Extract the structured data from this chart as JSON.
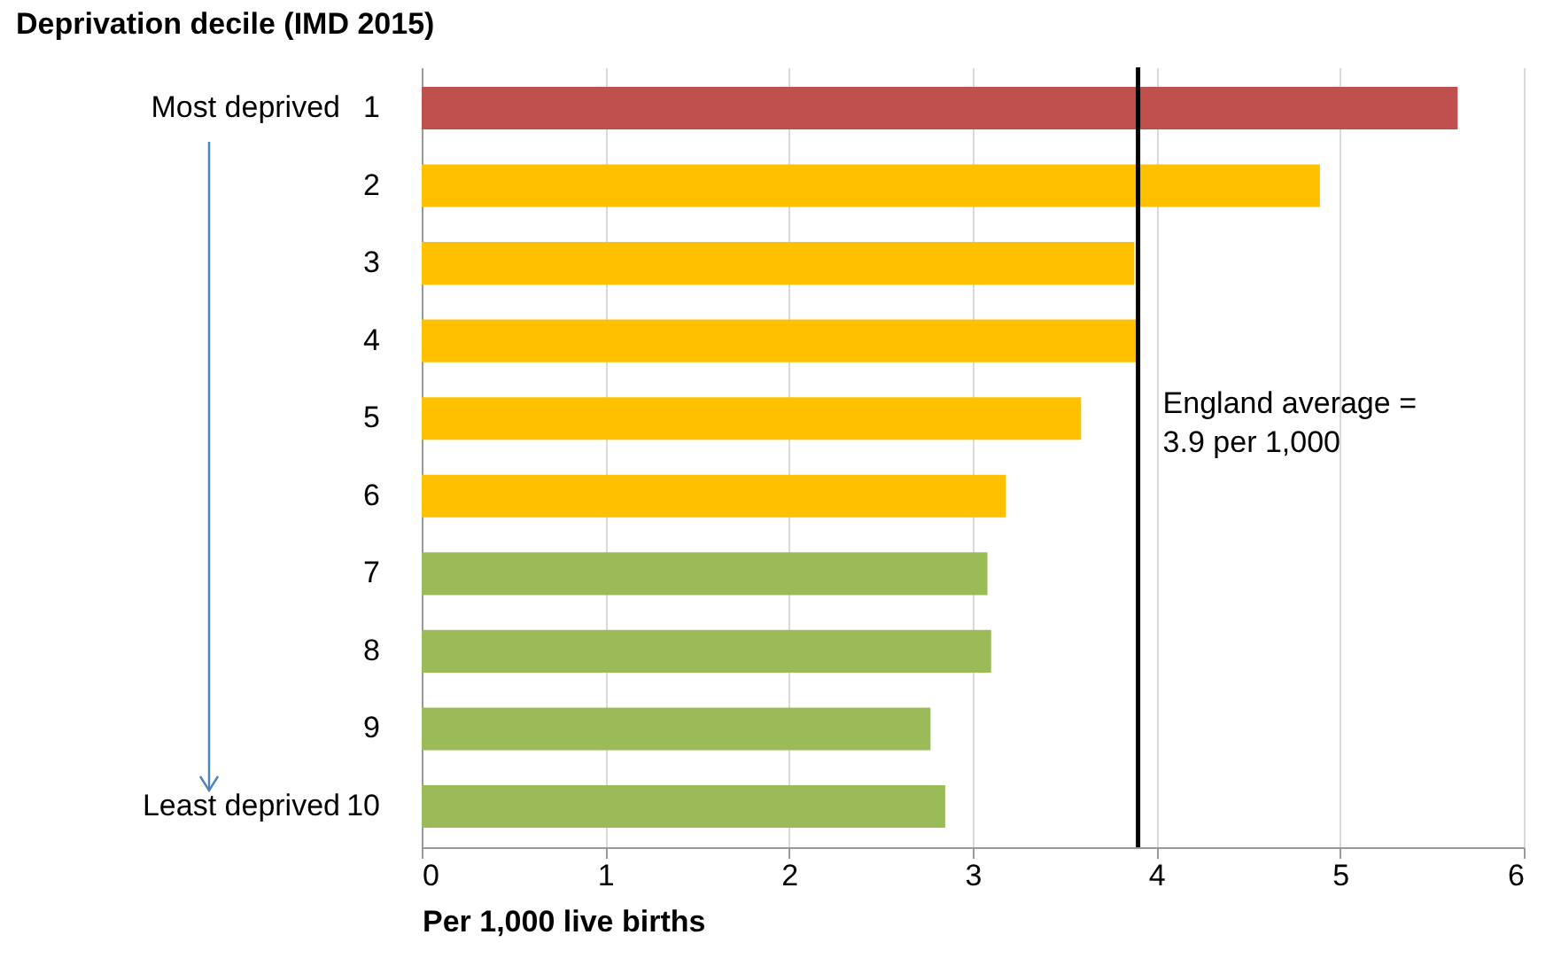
{
  "chart_data": {
    "type": "bar",
    "orientation": "horizontal",
    "title": "Deprivation decile (IMD 2015)",
    "xlabel": "Per 1,000 live births",
    "categories": [
      "1",
      "2",
      "3",
      "4",
      "5",
      "6",
      "7",
      "8",
      "9",
      "10"
    ],
    "values": [
      5.64,
      4.89,
      3.88,
      3.91,
      3.59,
      3.18,
      3.08,
      3.1,
      2.77,
      2.85
    ],
    "colors": [
      "#c0504d",
      "#ffc000",
      "#ffc000",
      "#ffc000",
      "#ffc000",
      "#ffc000",
      "#9bbb59",
      "#9bbb59",
      "#9bbb59",
      "#9bbb59"
    ],
    "xlim": [
      0,
      6
    ],
    "xticks": [
      0,
      1,
      2,
      3,
      4,
      5,
      6
    ],
    "grid": "x",
    "ref_lines": [
      {
        "axis": "x",
        "value": 3.9,
        "label": "England average =\n3.9 per 1,000",
        "color": "#000000"
      }
    ],
    "annotations": [
      "Most deprived",
      "Least deprived"
    ]
  }
}
